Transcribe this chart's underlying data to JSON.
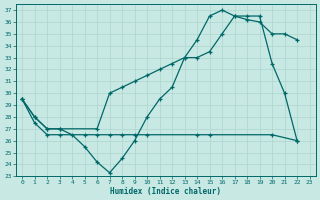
{
  "xlabel": "Humidex (Indice chaleur)",
  "xlim": [
    -0.5,
    23.5
  ],
  "ylim": [
    23,
    37.5
  ],
  "yticks": [
    23,
    24,
    25,
    26,
    27,
    28,
    29,
    30,
    31,
    32,
    33,
    34,
    35,
    36,
    37
  ],
  "xticks": [
    0,
    1,
    2,
    3,
    4,
    5,
    6,
    7,
    8,
    9,
    10,
    11,
    12,
    13,
    14,
    15,
    16,
    17,
    18,
    19,
    20,
    21,
    22,
    23
  ],
  "bg_color": "#c8e8e4",
  "grid_color": "#b0d8d0",
  "line_color": "#006868",
  "line1_x": [
    0,
    1,
    2,
    3,
    4,
    5,
    6,
    7,
    8,
    9,
    10,
    11,
    12,
    13,
    14,
    15,
    16,
    17,
    18,
    19,
    20,
    21,
    22
  ],
  "line1_y": [
    29.5,
    28,
    27,
    27,
    26.5,
    25.5,
    24.2,
    23.3,
    24.5,
    26,
    28,
    29.5,
    30.5,
    33,
    34.5,
    36.5,
    37,
    36.5,
    36.2,
    36,
    35,
    35,
    34.5
  ],
  "line2_x": [
    0,
    1,
    2,
    3,
    5,
    6,
    7,
    8,
    9,
    10,
    14,
    15,
    20,
    22
  ],
  "line2_y": [
    29.5,
    27.5,
    26.5,
    26.5,
    26.5,
    26.5,
    26.5,
    26.5,
    26.5,
    26.5,
    26.5,
    26.5,
    26.5,
    26
  ],
  "line3_x": [
    0,
    1,
    2,
    3,
    6,
    7,
    8,
    9,
    10,
    11,
    12,
    13,
    14,
    15,
    16,
    17,
    18,
    19,
    20,
    21,
    22
  ],
  "line3_y": [
    29.5,
    28,
    27,
    27,
    27,
    30,
    30.5,
    31,
    31.5,
    32,
    32.5,
    33,
    33,
    33.5,
    35,
    36.5,
    36.5,
    36.5,
    32.5,
    30,
    26
  ]
}
